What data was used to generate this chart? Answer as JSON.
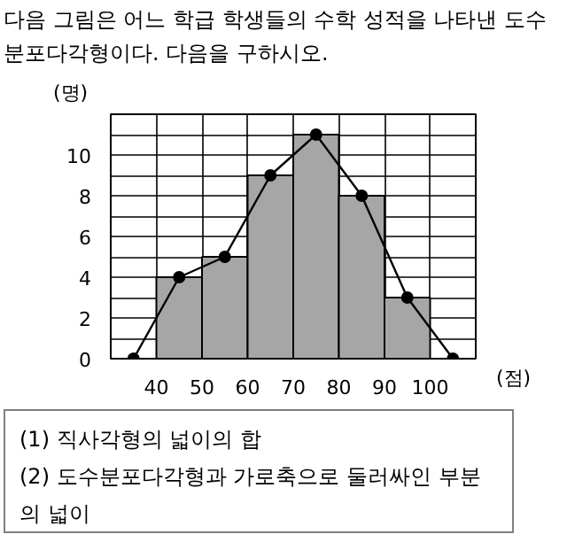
{
  "chart_data": {
    "type": "histogram",
    "title": "다음 그림은 어느 학급 학생들의 수학 성적을 나타낸 도수분포다각형이다. 다음을 구하시오.",
    "ylabel": "(명)",
    "xlabel": "(점)",
    "bins": [
      40,
      50,
      60,
      70,
      80,
      90,
      100
    ],
    "values": [
      4,
      5,
      9,
      11,
      8,
      3
    ],
    "color": "#a6a6a6",
    "series": [
      {
        "type": "line",
        "color": "#000000",
        "x": [
          35,
          45,
          55,
          65,
          75,
          85,
          95,
          105
        ],
        "values": [
          0,
          4,
          5,
          9,
          11,
          8,
          3,
          0
        ]
      }
    ],
    "marker": "circle",
    "line_style": "solid",
    "grid": true,
    "xlim": [
      30,
      110
    ],
    "ylim": [
      0,
      12
    ],
    "xticks": [
      {
        "value": 30,
        "label": null
      },
      40,
      50,
      60,
      70,
      80,
      90,
      100,
      {
        "value": 110,
        "label": null
      }
    ],
    "yticks": [
      0,
      {
        "value": 1,
        "label": null
      },
      2,
      {
        "value": 3,
        "label": null
      },
      4,
      {
        "value": 5,
        "label": null
      },
      6,
      {
        "value": 7,
        "label": null
      },
      8,
      {
        "value": 9,
        "label": null
      },
      10,
      {
        "value": 11,
        "label": null
      },
      {
        "value": 12,
        "label": null
      }
    ],
    "annotations": [
      "(1) 직사각형의 넓이의 합",
      "(2) 도수분포다각형과 가로축으로 둘러싸인 부분의 넓이"
    ]
  }
}
